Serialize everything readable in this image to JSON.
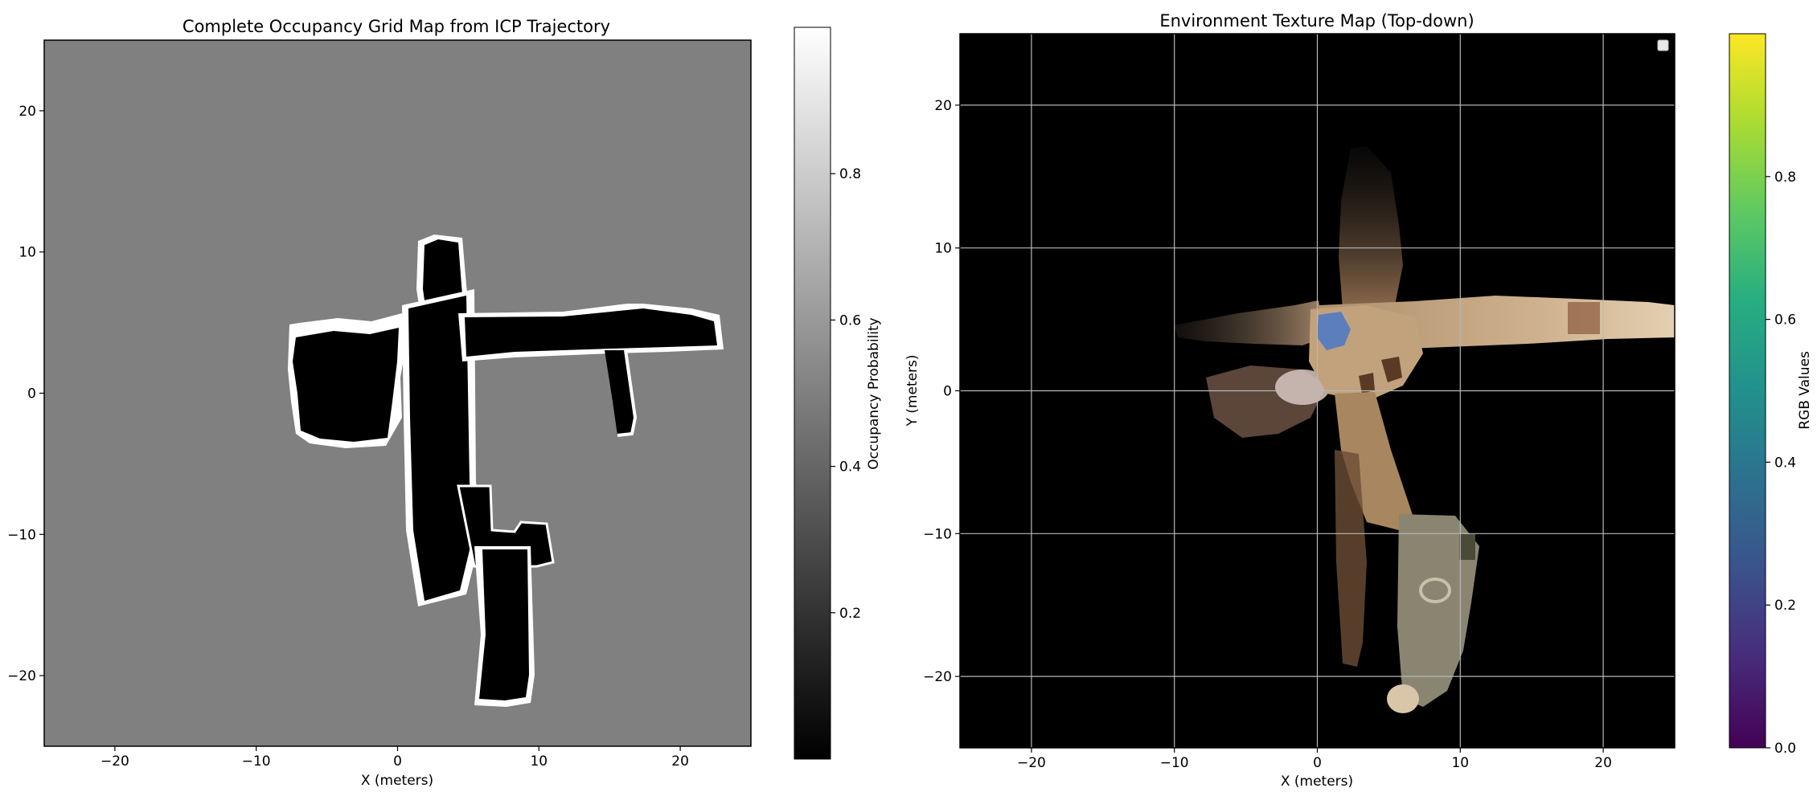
{
  "chart_data": [
    {
      "type": "heatmap",
      "title": "Complete Occupancy Grid Map from ICP Trajectory",
      "xlabel": "X (meters)",
      "ylabel": "",
      "xlim": [
        -25,
        25
      ],
      "ylim": [
        -25,
        25
      ],
      "xticks": [
        -20,
        -10,
        0,
        10,
        20
      ],
      "yticks": [
        -20,
        -10,
        0,
        10,
        20
      ],
      "xtick_labels": [
        "−20",
        "−10",
        "0",
        "10",
        "20"
      ],
      "ytick_labels": [
        "−20",
        "−10",
        "0",
        "10",
        "20"
      ],
      "grid": false,
      "background_value": 0.5,
      "colormap": "gray",
      "colorbar": {
        "label": "Occupancy Probability",
        "ticks": [
          0.2,
          0.4,
          0.6,
          0.8
        ],
        "tick_labels": [
          "0.2",
          "0.4",
          "0.6",
          "0.8"
        ],
        "range": [
          0.0,
          1.0
        ]
      },
      "regions": [
        {
          "name": "west-clutter",
          "value": 0,
          "x": [
            -7.5,
            -3.8
          ],
          "y": [
            -3.8,
            4.8
          ]
        },
        {
          "name": "main-corridor",
          "value": 0,
          "x": [
            0.5,
            5.5
          ],
          "y": [
            -13.5,
            9.8
          ]
        },
        {
          "name": "east-corridor",
          "value": 0,
          "x": [
            5.0,
            22.5
          ],
          "y": [
            3.0,
            5.5
          ]
        },
        {
          "name": "east-branch",
          "value": 0,
          "x": [
            14.5,
            17.0
          ],
          "y": [
            -3.0,
            3.0
          ]
        },
        {
          "name": "south-block",
          "value": 0,
          "x": [
            5.0,
            11.0
          ],
          "y": [
            -21.5,
            -9.0
          ]
        }
      ]
    },
    {
      "type": "heatmap",
      "title": "Environment Texture Map (Top-down)",
      "xlabel": "X (meters)",
      "ylabel": "Y (meters)",
      "xlim": [
        -25,
        25
      ],
      "ylim": [
        -25,
        25
      ],
      "xticks": [
        -20,
        -10,
        0,
        10,
        20
      ],
      "yticks": [
        -20,
        -10,
        0,
        10,
        20
      ],
      "xtick_labels": [
        "−20",
        "−10",
        "0",
        "10",
        "20"
      ],
      "ytick_labels": [
        "−20",
        "−10",
        "0",
        "10",
        "20"
      ],
      "grid": true,
      "legend": "top-right",
      "colormap": "viridis",
      "colorbar": {
        "label": "RGB Values",
        "ticks": [
          0.0,
          0.2,
          0.4,
          0.6,
          0.8
        ],
        "tick_labels": [
          "0.0",
          "0.2",
          "0.4",
          "0.6",
          "0.8"
        ],
        "range": [
          0.0,
          1.0
        ]
      },
      "colors": {
        "background": "#000000",
        "texture_main": "#b08d6a",
        "texture_light": "#d9c2a3",
        "texture_dark": "#6e4f36",
        "texture_blue": "#4a78c8"
      },
      "regions": [
        {
          "name": "west-arm",
          "x": [
            -10.0,
            0.0
          ],
          "y": [
            1.0,
            5.0
          ]
        },
        {
          "name": "east-arm",
          "x": [
            1.0,
            25.0
          ],
          "y": [
            3.0,
            6.5
          ]
        },
        {
          "name": "north-corridor",
          "x": [
            2.0,
            6.0
          ],
          "y": [
            6.0,
            17.0
          ]
        },
        {
          "name": "south-corridor",
          "x": [
            1.5,
            8.5
          ],
          "y": [
            -20.0,
            1.0
          ]
        }
      ]
    }
  ]
}
